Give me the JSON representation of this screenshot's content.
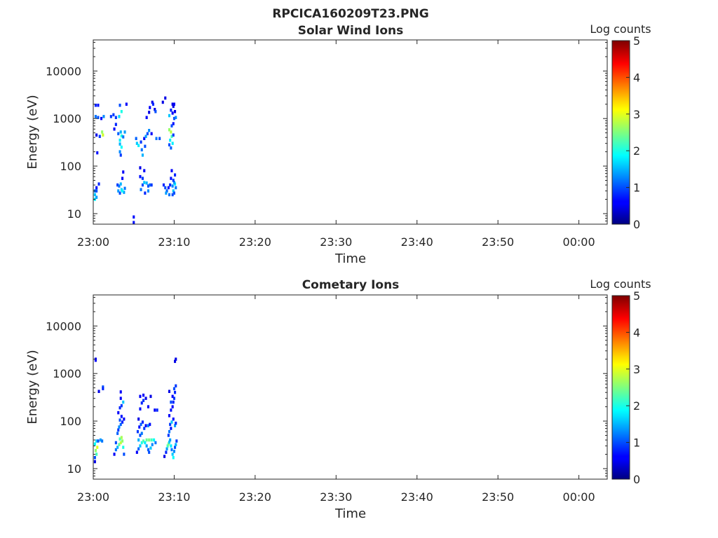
{
  "figure_title": "RPCICA160209T23.PNG",
  "chart_data": [
    {
      "type": "heatmap",
      "title": "Solar Wind Ions",
      "xlabel": "Time",
      "ylabel": "Energy (eV)",
      "x_ticks": [
        "23:00",
        "23:10",
        "23:20",
        "23:30",
        "23:40",
        "23:50",
        "00:00"
      ],
      "x_tick_minutes": [
        0,
        10,
        20,
        30,
        40,
        50,
        60
      ],
      "xlim_minutes": [
        0,
        63.5
      ],
      "y_scale": "log",
      "y_ticks": [
        "10",
        "100",
        "1000",
        "10000"
      ],
      "y_tick_values": [
        10,
        100,
        1000,
        10000
      ],
      "ylim": [
        6,
        45000
      ],
      "colorbar": {
        "label": "Log counts",
        "range": [
          0,
          5
        ],
        "ticks": [
          "0",
          "1",
          "2",
          "3",
          "4",
          "5"
        ],
        "colormap": "jet"
      },
      "cell": {
        "minutes": 0.27,
        "energy_factor": 1.08
      },
      "points": [
        [
          0.2,
          30,
          1.2
        ],
        [
          0.2,
          25,
          1.6
        ],
        [
          0.2,
          20,
          1.8
        ],
        [
          0.4,
          30,
          1.0
        ],
        [
          0.4,
          22,
          1.4
        ],
        [
          0.3,
          1900,
          0.8
        ],
        [
          0.6,
          1900,
          0.7
        ],
        [
          0.3,
          1100,
          1.2
        ],
        [
          0.6,
          1050,
          1.0
        ],
        [
          1.0,
          1000,
          0.6
        ],
        [
          1.3,
          1100,
          1.3
        ],
        [
          0.4,
          450,
          0.5
        ],
        [
          0.8,
          420,
          0.9
        ],
        [
          1.1,
          520,
          2.6
        ],
        [
          1.2,
          450,
          2.9
        ],
        [
          0.5,
          190,
          0.7
        ],
        [
          0.4,
          35,
          0.7
        ],
        [
          0.7,
          42,
          0.8
        ],
        [
          2.2,
          1100,
          0.9
        ],
        [
          2.5,
          1200,
          0.9
        ],
        [
          2.8,
          750,
          0.8
        ],
        [
          2.6,
          600,
          0.6
        ],
        [
          3.1,
          480,
          1.1
        ],
        [
          3.4,
          520,
          1.5
        ],
        [
          3.5,
          430,
          2.0
        ],
        [
          3.3,
          350,
          1.8
        ],
        [
          3.3,
          290,
          1.5
        ],
        [
          3.5,
          250,
          1.9
        ],
        [
          3.3,
          200,
          1.3
        ],
        [
          3.4,
          170,
          0.9
        ],
        [
          3.7,
          410,
          1.2
        ],
        [
          3.9,
          520,
          1.4
        ],
        [
          3.5,
          1400,
          2.0
        ],
        [
          3.3,
          1900,
          1.0
        ],
        [
          4.1,
          2000,
          0.6
        ],
        [
          2.8,
          1050,
          0.9
        ],
        [
          3.2,
          1100,
          1.7
        ],
        [
          3.0,
          40,
          0.9
        ],
        [
          3.2,
          38,
          1.2
        ],
        [
          3.4,
          42,
          1.5
        ],
        [
          3.5,
          32,
          1.7
        ],
        [
          3.1,
          30,
          1.4
        ],
        [
          3.3,
          27,
          1.0
        ],
        [
          3.6,
          55,
          0.6
        ],
        [
          3.8,
          28,
          1.4
        ],
        [
          3.6,
          30,
          1.9
        ],
        [
          3.9,
          34,
          1.2
        ],
        [
          3.7,
          75,
          0.6
        ],
        [
          5.0,
          8.5,
          0.7
        ],
        [
          5.0,
          6.5,
          0.7
        ],
        [
          5.3,
          380,
          1.1
        ],
        [
          5.4,
          300,
          1.6
        ],
        [
          5.6,
          270,
          1.8
        ],
        [
          5.9,
          320,
          0.9
        ],
        [
          6.0,
          220,
          1.2
        ],
        [
          6.1,
          170,
          1.5
        ],
        [
          6.3,
          380,
          0.6
        ],
        [
          6.5,
          420,
          1.4
        ],
        [
          6.4,
          260,
          1.0
        ],
        [
          6.7,
          480,
          1.0
        ],
        [
          6.9,
          560,
          1.3
        ],
        [
          7.2,
          480,
          0.6
        ],
        [
          5.8,
          92,
          0.5
        ],
        [
          5.8,
          60,
          0.7
        ],
        [
          6.1,
          55,
          0.9
        ],
        [
          6.1,
          40,
          1.0
        ],
        [
          5.9,
          32,
          1.2
        ],
        [
          6.3,
          45,
          1.6
        ],
        [
          6.6,
          44,
          1.5
        ],
        [
          6.8,
          38,
          1.0
        ],
        [
          6.8,
          30,
          1.3
        ],
        [
          7.0,
          40,
          1.2
        ],
        [
          7.2,
          40,
          0.9
        ],
        [
          6.4,
          27,
          0.8
        ],
        [
          6.3,
          80,
          0.6
        ],
        [
          6.6,
          1050,
          0.6
        ],
        [
          6.9,
          1350,
          0.5
        ],
        [
          7.0,
          1700,
          0.6
        ],
        [
          7.3,
          2200,
          0.5
        ],
        [
          7.6,
          1550,
          0.5
        ],
        [
          7.4,
          2000,
          0.8
        ],
        [
          7.7,
          1400,
          1.0
        ],
        [
          7.8,
          380,
          1.2
        ],
        [
          8.2,
          380,
          1.0
        ],
        [
          8.6,
          2200,
          0.5
        ],
        [
          8.9,
          2700,
          0.5
        ],
        [
          8.7,
          40,
          0.8
        ],
        [
          8.9,
          35,
          1.0
        ],
        [
          9.1,
          30,
          1.1
        ],
        [
          9.3,
          35,
          0.7
        ],
        [
          9.0,
          27,
          1.4
        ],
        [
          9.4,
          25,
          1.2
        ],
        [
          9.5,
          40,
          0.8
        ],
        [
          9.6,
          55,
          0.7
        ],
        [
          9.7,
          80,
          0.6
        ],
        [
          9.4,
          580,
          2.6
        ],
        [
          9.6,
          520,
          2.8
        ],
        [
          9.7,
          420,
          2.2
        ],
        [
          9.5,
          350,
          1.8
        ],
        [
          9.4,
          280,
          1.0
        ],
        [
          9.6,
          240,
          1.1
        ],
        [
          9.8,
          300,
          1.8
        ],
        [
          9.9,
          450,
          0.9
        ],
        [
          9.7,
          700,
          1.0
        ],
        [
          9.9,
          780,
          0.7
        ],
        [
          9.4,
          1150,
          1.6
        ],
        [
          9.8,
          1300,
          0.6
        ],
        [
          10.0,
          1000,
          1.0
        ],
        [
          10.1,
          1400,
          0.5
        ],
        [
          10.2,
          1050,
          1.3
        ],
        [
          10.0,
          2000,
          0.6
        ],
        [
          9.6,
          1500,
          0.8
        ],
        [
          9.9,
          1800,
          0.5
        ],
        [
          9.8,
          2000,
          0.5
        ],
        [
          9.8,
          38,
          1.3
        ],
        [
          9.9,
          30,
          1.6
        ],
        [
          10.0,
          27,
          1.0
        ],
        [
          10.1,
          42,
          1.8
        ],
        [
          10.2,
          35,
          1.2
        ],
        [
          9.8,
          25,
          1.0
        ],
        [
          10.0,
          45,
          1.4
        ],
        [
          10.1,
          65,
          0.8
        ],
        [
          9.9,
          50,
          0.9
        ]
      ]
    },
    {
      "type": "heatmap",
      "title": "Cometary Ions",
      "xlabel": "Time",
      "ylabel": "Energy (eV)",
      "x_ticks": [
        "23:00",
        "23:10",
        "23:20",
        "23:30",
        "23:40",
        "23:50",
        "00:00"
      ],
      "x_tick_minutes": [
        0,
        10,
        20,
        30,
        40,
        50,
        60
      ],
      "xlim_minutes": [
        0,
        63.5
      ],
      "y_scale": "log",
      "y_ticks": [
        "10",
        "100",
        "1000",
        "10000"
      ],
      "y_tick_values": [
        10,
        100,
        1000,
        10000
      ],
      "ylim": [
        6,
        45000
      ],
      "colorbar": {
        "label": "Log counts",
        "range": [
          0,
          5
        ],
        "ticks": [
          "0",
          "1",
          "2",
          "3",
          "4",
          "5"
        ],
        "colormap": "jet"
      },
      "cell": {
        "minutes": 0.27,
        "energy_factor": 1.08
      },
      "points": [
        [
          0.2,
          14,
          0.5
        ],
        [
          0.2,
          17,
          1.0
        ],
        [
          0.4,
          20,
          2.2
        ],
        [
          0.3,
          24,
          2.6
        ],
        [
          0.5,
          28,
          3.0
        ],
        [
          0.2,
          33,
          1.9
        ],
        [
          0.4,
          38,
          1.7
        ],
        [
          0.6,
          38,
          1.0
        ],
        [
          0.9,
          40,
          1.4
        ],
        [
          1.1,
          38,
          1.2
        ],
        [
          0.3,
          2000,
          0.5
        ],
        [
          0.3,
          1900,
          0.6
        ],
        [
          0.7,
          420,
          0.5
        ],
        [
          1.2,
          520,
          1.0
        ],
        [
          1.2,
          480,
          0.8
        ],
        [
          2.6,
          20,
          0.6
        ],
        [
          2.8,
          25,
          1.2
        ],
        [
          3.0,
          28,
          1.5
        ],
        [
          3.2,
          32,
          2.3
        ],
        [
          3.4,
          35,
          2.8
        ],
        [
          3.6,
          38,
          2.6
        ],
        [
          3.3,
          42,
          2.2
        ],
        [
          3.5,
          45,
          2.7
        ],
        [
          3.7,
          28,
          2.0
        ],
        [
          3.8,
          20,
          1.0
        ],
        [
          3.0,
          55,
          1.1
        ],
        [
          3.1,
          65,
          0.9
        ],
        [
          3.2,
          75,
          1.3
        ],
        [
          3.4,
          85,
          1.1
        ],
        [
          3.6,
          95,
          0.8
        ],
        [
          3.3,
          105,
          1.0
        ],
        [
          3.5,
          125,
          0.7
        ],
        [
          3.8,
          110,
          0.6
        ],
        [
          3.1,
          150,
          0.6
        ],
        [
          3.3,
          190,
          0.8
        ],
        [
          3.5,
          210,
          0.9
        ],
        [
          3.4,
          300,
          0.6
        ],
        [
          3.4,
          410,
          0.6
        ],
        [
          3.7,
          250,
          1.6
        ],
        [
          2.8,
          35,
          1.0
        ],
        [
          5.4,
          22,
          0.6
        ],
        [
          5.6,
          26,
          1.1
        ],
        [
          5.8,
          30,
          1.6
        ],
        [
          6.0,
          35,
          2.0
        ],
        [
          6.2,
          38,
          2.3
        ],
        [
          6.4,
          35,
          1.8
        ],
        [
          6.6,
          30,
          1.4
        ],
        [
          6.8,
          25,
          1.1
        ],
        [
          6.9,
          22,
          1.0
        ],
        [
          7.1,
          27,
          1.6
        ],
        [
          7.3,
          32,
          1.3
        ],
        [
          6.6,
          40,
          2.4
        ],
        [
          6.9,
          40,
          2.5
        ],
        [
          7.2,
          40,
          2.2
        ],
        [
          7.5,
          40,
          1.9
        ],
        [
          7.7,
          35,
          1.2
        ],
        [
          5.6,
          40,
          1.5
        ],
        [
          5.8,
          50,
          1.0
        ],
        [
          5.5,
          60,
          0.9
        ],
        [
          5.7,
          75,
          0.7
        ],
        [
          5.9,
          85,
          1.1
        ],
        [
          6.1,
          95,
          0.8
        ],
        [
          6.0,
          55,
          1.2
        ],
        [
          6.3,
          70,
          0.9
        ],
        [
          6.5,
          80,
          0.6
        ],
        [
          6.8,
          80,
          1.3
        ],
        [
          7.0,
          85,
          0.7
        ],
        [
          5.6,
          110,
          0.5
        ],
        [
          5.8,
          180,
          0.7
        ],
        [
          5.8,
          330,
          0.6
        ],
        [
          6.0,
          240,
          0.8
        ],
        [
          6.2,
          270,
          0.9
        ],
        [
          6.2,
          350,
          0.6
        ],
        [
          6.5,
          300,
          0.5
        ],
        [
          6.8,
          200,
          0.6
        ],
        [
          7.1,
          330,
          0.5
        ],
        [
          7.6,
          170,
          0.6
        ],
        [
          7.9,
          170,
          0.8
        ],
        [
          8.8,
          18,
          0.5
        ],
        [
          9.0,
          22,
          0.8
        ],
        [
          9.1,
          26,
          1.4
        ],
        [
          9.2,
          30,
          2.2
        ],
        [
          9.3,
          33,
          2.5
        ],
        [
          9.4,
          36,
          1.6
        ],
        [
          9.5,
          40,
          1.4
        ],
        [
          9.6,
          30,
          1.8
        ],
        [
          9.7,
          25,
          1.2
        ],
        [
          9.8,
          20,
          1.6
        ],
        [
          9.9,
          17,
          1.9
        ],
        [
          10.0,
          23,
          1.3
        ],
        [
          10.1,
          28,
          1.0
        ],
        [
          10.2,
          32,
          1.5
        ],
        [
          10.3,
          38,
          0.9
        ],
        [
          9.3,
          50,
          0.9
        ],
        [
          9.4,
          60,
          1.2
        ],
        [
          9.6,
          70,
          0.7
        ],
        [
          9.5,
          85,
          0.9
        ],
        [
          9.7,
          95,
          1.6
        ],
        [
          9.9,
          110,
          0.7
        ],
        [
          10.1,
          80,
          1.4
        ],
        [
          10.2,
          90,
          0.8
        ],
        [
          9.4,
          130,
          0.6
        ],
        [
          9.6,
          170,
          0.7
        ],
        [
          9.8,
          200,
          0.6
        ],
        [
          9.9,
          250,
          0.8
        ],
        [
          10.0,
          300,
          0.9
        ],
        [
          9.8,
          330,
          0.6
        ],
        [
          10.1,
          400,
          0.8
        ],
        [
          10.0,
          480,
          1.0
        ],
        [
          10.2,
          550,
          0.9
        ],
        [
          9.6,
          250,
          1.0
        ],
        [
          9.4,
          420,
          0.5
        ],
        [
          10.1,
          1800,
          0.5
        ],
        [
          10.2,
          2000,
          0.5
        ]
      ]
    }
  ]
}
